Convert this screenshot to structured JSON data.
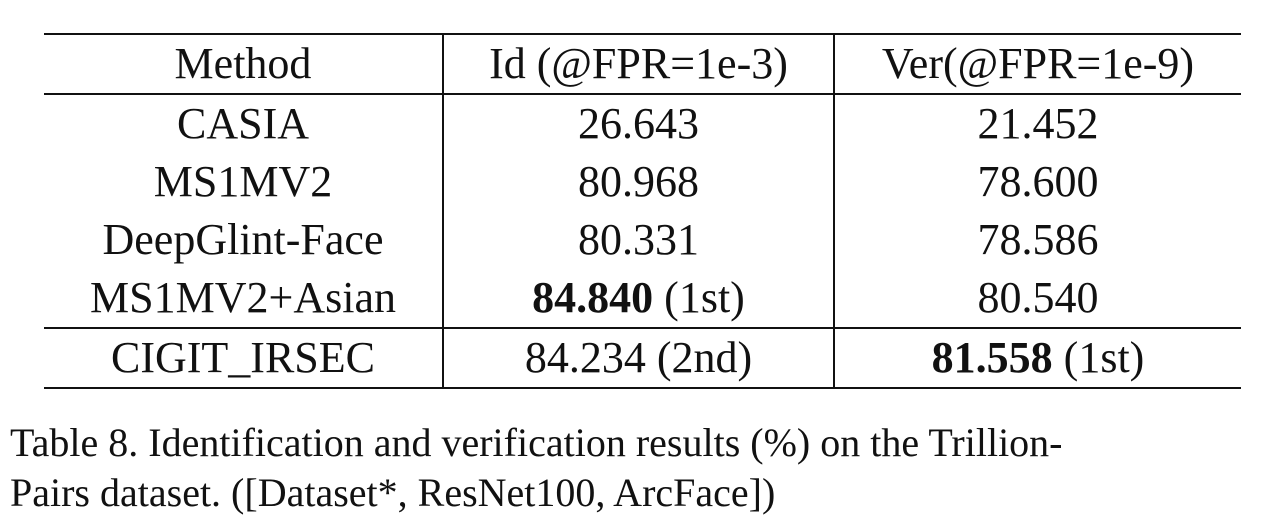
{
  "table": {
    "headers": [
      "Method",
      "Id (@FPR=1e-3)",
      "Ver(@FPR=1e-9)"
    ],
    "rows": [
      {
        "method": "CASIA",
        "id_value": "26.643",
        "id_note": "",
        "ver_value": "21.452",
        "ver_note": ""
      },
      {
        "method": "MS1MV2",
        "id_value": "80.968",
        "id_note": "",
        "ver_value": "78.600",
        "ver_note": ""
      },
      {
        "method": "DeepGlint-Face",
        "id_value": "80.331",
        "id_note": "",
        "ver_value": "78.586",
        "ver_note": ""
      },
      {
        "method": "MS1MV2+Asian",
        "id_value": "84.840",
        "id_note": " (1st)",
        "ver_value": "80.540",
        "ver_note": ""
      },
      {
        "method": "CIGIT_IRSEC",
        "id_value": "84.234 (2nd)",
        "id_note": "",
        "ver_value": "81.558",
        "ver_note": " (1st)"
      }
    ]
  },
  "caption": {
    "line1": "Table 8. Identification and verification results (%) on the Trillion-",
    "line2": "Pairs dataset. ([Dataset*, ResNet100, ArcFace])"
  }
}
